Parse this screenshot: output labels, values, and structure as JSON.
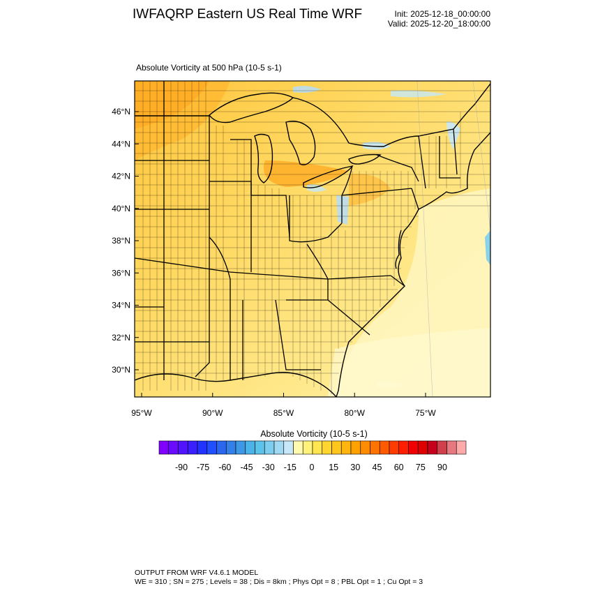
{
  "header": {
    "title": "IWFAQRP Eastern US Real Time WRF",
    "init": "Init: 2025-12-18_00:00:00",
    "valid": "Valid: 2025-12-20_18:00:00"
  },
  "map": {
    "field_title": "Absolute Vorticity at 500 hPa   (10-5 s-1)",
    "lat_labels": [
      "46°N",
      "44°N",
      "42°N",
      "40°N",
      "38°N",
      "36°N",
      "34°N",
      "32°N",
      "30°N"
    ],
    "lon_labels": [
      "95°W",
      "90°W",
      "85°W",
      "80°W",
      "75°W"
    ],
    "lat_values": [
      46,
      44,
      42,
      40,
      38,
      36,
      34,
      32,
      30
    ],
    "lon_values": [
      -95,
      -90,
      -85,
      -80,
      -75
    ]
  },
  "colorbar": {
    "title": "Absolute Vorticity  (10-5 s-1)",
    "labels": [
      "-90",
      "-75",
      "-60",
      "-45",
      "-30",
      "-15",
      "0",
      "15",
      "30",
      "45",
      "60",
      "75",
      "90"
    ],
    "colors": [
      "#7f00ff",
      "#6a0aff",
      "#5214ff",
      "#3a1fff",
      "#2233ff",
      "#1f4fff",
      "#2a66ee",
      "#3380e8",
      "#3d99e6",
      "#4ab3e8",
      "#5cc2ea",
      "#7dcdef",
      "#a1d9f3",
      "#c6e8f8",
      "#fffab0",
      "#fff27a",
      "#ffe650",
      "#ffd630",
      "#ffc61e",
      "#ffb50e",
      "#ffa200",
      "#ff8c00",
      "#ff7400",
      "#ff5a00",
      "#ff3c00",
      "#ff1e00",
      "#f00000",
      "#dc0000",
      "#c4001c",
      "#d0404c",
      "#e87880",
      "#ffaaaa"
    ]
  },
  "footer": {
    "line1": "OUTPUT FROM WRF V4.6.1 MODEL",
    "line2": "WE = 310 ; SN = 275 ; Levels = 38 ; Dis = 8km ; Phys Opt = 8 ; PBL Opt = 1 ; Cu Opt = 3"
  }
}
